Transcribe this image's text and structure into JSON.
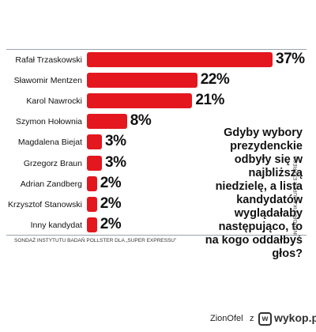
{
  "chart_data": {
    "type": "bar",
    "orientation": "horizontal",
    "categories": [
      "Rafał Trzaskowski",
      "Sławomir Mentzen",
      "Karol Nawrocki",
      "Szymon Hołownia",
      "Magdalena Biejat",
      "Grzegorz Braun",
      "Adrian Zandberg",
      "Krzysztof Stanowski",
      "Inny kandydat"
    ],
    "values": [
      37,
      22,
      21,
      8,
      3,
      3,
      2,
      2,
      2
    ],
    "value_labels": [
      "37%",
      "22%",
      "21%",
      "8%",
      "3%",
      "3%",
      "2%",
      "2%",
      "2%"
    ],
    "bar_color": "#e4171f",
    "grid": false,
    "legend": "none"
  },
  "question": "Gdyby wybory prezydenckie odbyły się w najbliższą niedzielę, a lista kandydatów wyglądałaby następująco, to na kogo oddałbyś głos?",
  "source": "SONDAŻ INSTYTUTU BADAŃ POLLSTER DLA „SUPER EXPRESSU”",
  "credit": "INFOGRAFIKA SUPER EXPRESS",
  "footer": {
    "username": "ZionOfel",
    "separator": "z",
    "logo_letter": "w",
    "site": "wykop.pl"
  }
}
